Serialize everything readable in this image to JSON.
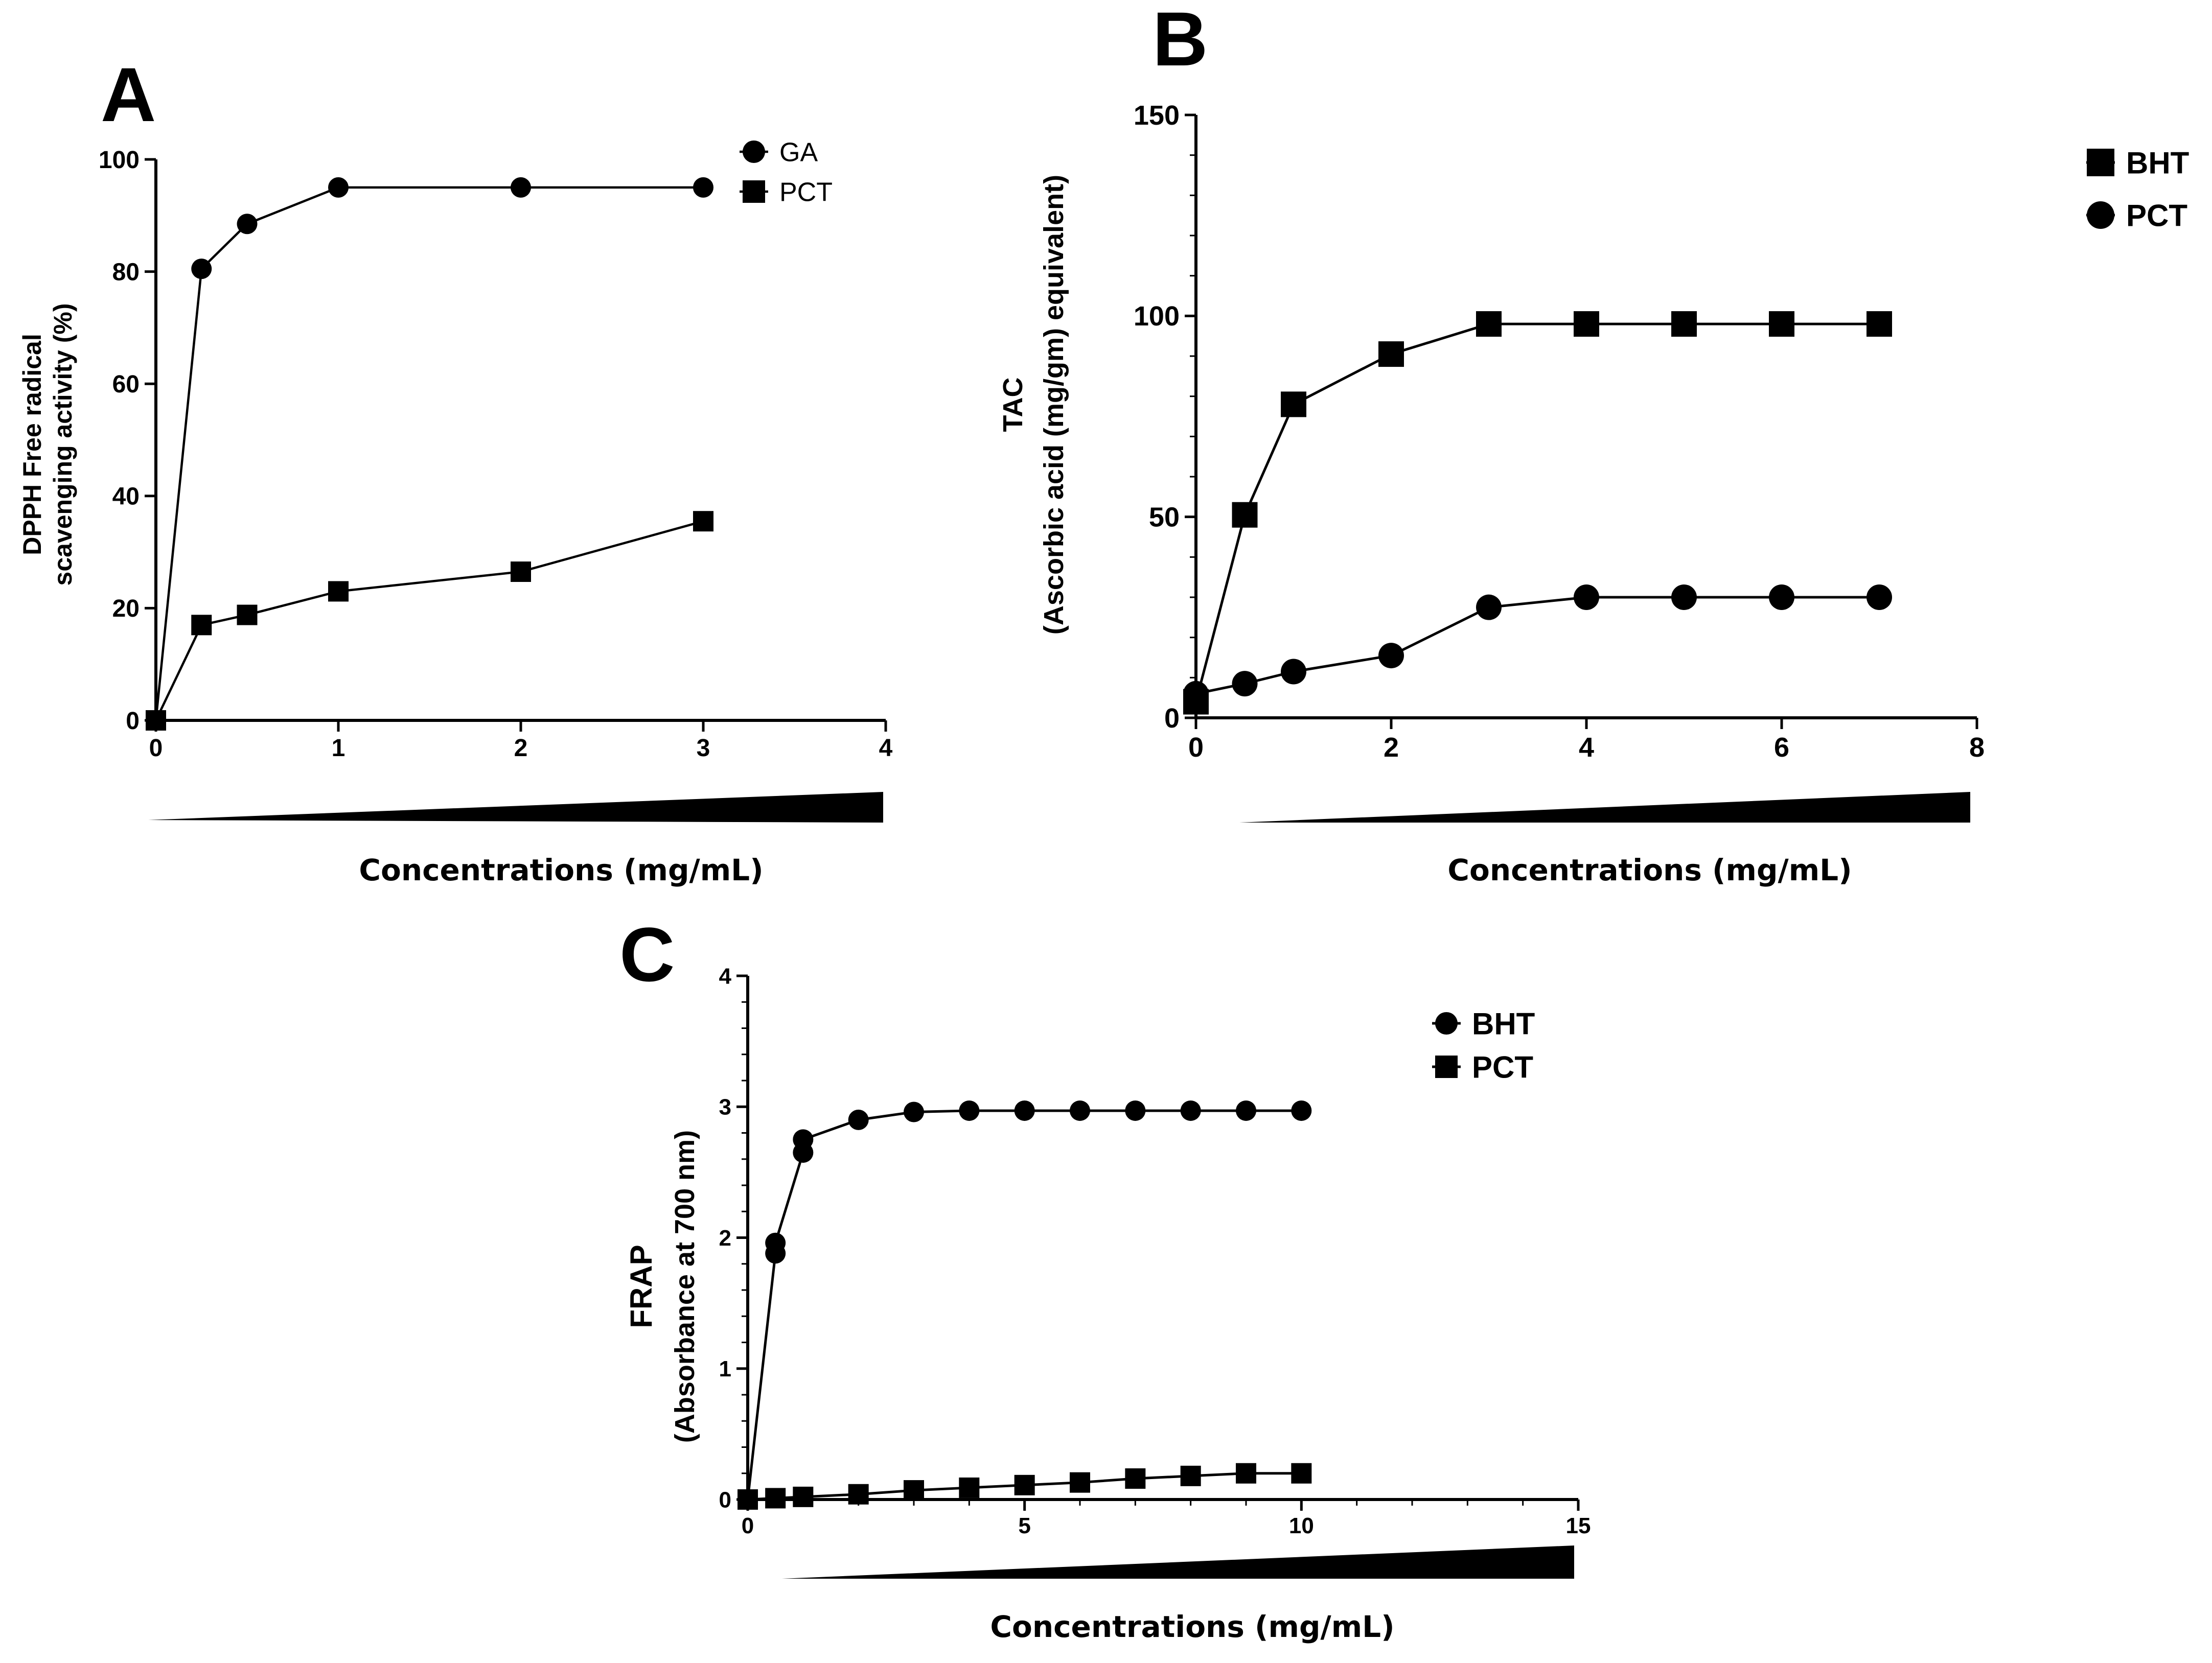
{
  "chart_data": [
    {
      "panel": "A",
      "type": "line",
      "ylabel": "DPPH Free radical scavenging activity (%)",
      "xlabel": "Concentrations (mg/mL)",
      "xlim": [
        0,
        4
      ],
      "ylim": [
        0,
        100
      ],
      "xticks": [
        0,
        1,
        2,
        3,
        4
      ],
      "yticks": [
        0,
        20,
        40,
        60,
        80,
        100
      ],
      "legend_position": "top-right",
      "series": [
        {
          "name": "GA",
          "marker": "circle",
          "x": [
            0,
            0.25,
            0.5,
            1,
            2,
            3
          ],
          "y": [
            0,
            80.5,
            88.5,
            95,
            95,
            95
          ]
        },
        {
          "name": "PCT",
          "marker": "square",
          "x": [
            0,
            0.25,
            0.5,
            1,
            2,
            3
          ],
          "y": [
            0,
            17,
            18.8,
            23,
            26.5,
            35.5
          ]
        }
      ]
    },
    {
      "panel": "B",
      "type": "line",
      "ylabel": "TAC (Ascorbic acid (mg/gm) equivalent)",
      "xlabel": "Concentrations (mg/mL)",
      "xlim": [
        0,
        8
      ],
      "ylim": [
        0,
        150
      ],
      "xticks": [
        0,
        2,
        4,
        6,
        8
      ],
      "yticks": [
        0,
        50,
        100,
        150
      ],
      "legend_position": "right",
      "series": [
        {
          "name": "BHT",
          "marker": "square",
          "x": [
            0,
            0.5,
            1,
            2,
            3,
            4,
            5,
            6,
            7
          ],
          "y": [
            4,
            50.5,
            78,
            90.5,
            98,
            98,
            98,
            98,
            98
          ]
        },
        {
          "name": "PCT",
          "marker": "circle",
          "x": [
            0,
            0.5,
            1,
            2,
            3,
            4,
            5,
            6,
            7
          ],
          "y": [
            6,
            8.5,
            11.5,
            15.5,
            27.5,
            30,
            30,
            30,
            30
          ]
        }
      ]
    },
    {
      "panel": "C",
      "type": "line",
      "ylabel": "FRAP (Absorbance at 700 nm)",
      "xlabel": "Concentrations (mg/mL)",
      "xlim": [
        0,
        15
      ],
      "ylim": [
        0,
        4
      ],
      "xticks": [
        0,
        5,
        10,
        15
      ],
      "yticks": [
        0,
        1,
        2,
        3,
        4
      ],
      "legend_position": "top-right",
      "series": [
        {
          "name": "BHT",
          "marker": "circle",
          "x": [
            0,
            0.5,
            0.5,
            1,
            1,
            2,
            3,
            4,
            5,
            6,
            7,
            8,
            9,
            10
          ],
          "y": [
            0,
            1.88,
            1.96,
            2.65,
            2.75,
            2.9,
            2.96,
            2.97,
            2.97,
            2.97,
            2.97,
            2.97,
            2.97,
            2.97
          ]
        },
        {
          "name": "PCT",
          "marker": "square",
          "x": [
            0,
            0.5,
            1,
            2,
            3,
            4,
            5,
            6,
            7,
            8,
            9,
            10
          ],
          "y": [
            0,
            0.01,
            0.02,
            0.04,
            0.07,
            0.09,
            0.11,
            0.13,
            0.16,
            0.18,
            0.2,
            0.2
          ]
        }
      ]
    }
  ],
  "labels": {
    "panel_a": "A",
    "panel_b": "B",
    "panel_c": "C",
    "a_ylabel_1": "DPPH Free radical",
    "a_ylabel_2": "scavenging activity (%)",
    "b_ylabel_1": "TAC",
    "b_ylabel_2": "(Ascorbic acid (mg/gm) equivalent)",
    "c_ylabel_1": "FRAP",
    "c_ylabel_2": "(Absorbance at 700 nm)",
    "xlabel": "Concentrations (mg/mL)"
  },
  "colors": {
    "ink": "#000000",
    "background": "#ffffff"
  }
}
